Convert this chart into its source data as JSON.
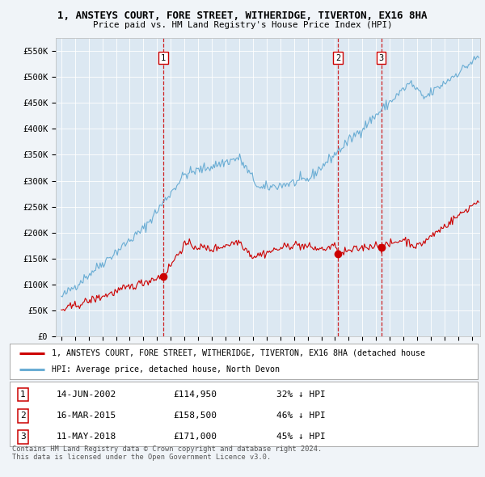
{
  "title": "1, ANSTEYS COURT, FORE STREET, WITHERIDGE, TIVERTON, EX16 8HA",
  "subtitle": "Price paid vs. HM Land Registry's House Price Index (HPI)",
  "ylabel_ticks": [
    "£0",
    "£50K",
    "£100K",
    "£150K",
    "£200K",
    "£250K",
    "£300K",
    "£350K",
    "£400K",
    "£450K",
    "£500K",
    "£550K"
  ],
  "ytick_values": [
    0,
    50000,
    100000,
    150000,
    200000,
    250000,
    300000,
    350000,
    400000,
    450000,
    500000,
    550000
  ],
  "ylim": [
    0,
    575000
  ],
  "sale_dates_num": [
    2002.45,
    2015.21,
    2018.37
  ],
  "sale_prices": [
    114950,
    158500,
    171000
  ],
  "sale_labels": [
    "1",
    "2",
    "3"
  ],
  "sale_label_dates": [
    "14-JUN-2002",
    "16-MAR-2015",
    "11-MAY-2018"
  ],
  "sale_label_prices": [
    "£114,950",
    "£158,500",
    "£171,000"
  ],
  "sale_label_hpi": [
    "32% ↓ HPI",
    "46% ↓ HPI",
    "45% ↓ HPI"
  ],
  "legend_line1": "1, ANSTEYS COURT, FORE STREET, WITHERIDGE, TIVERTON, EX16 8HA (detached house",
  "legend_line2": "HPI: Average price, detached house, North Devon",
  "footer1": "Contains HM Land Registry data © Crown copyright and database right 2024.",
  "footer2": "This data is licensed under the Open Government Licence v3.0.",
  "hpi_color": "#6aadd4",
  "sale_color": "#cc0000",
  "bg_color": "#f0f4f8",
  "plot_bg": "#dce8f2",
  "grid_color": "#ffffff"
}
